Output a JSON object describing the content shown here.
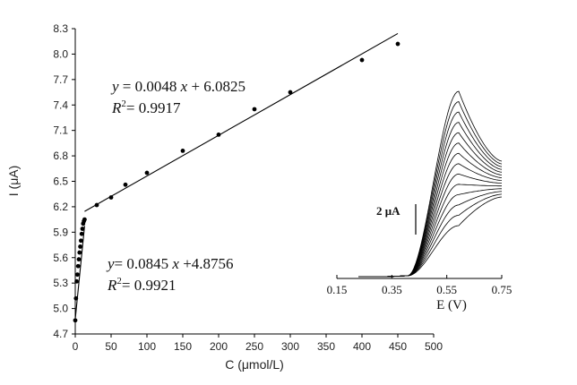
{
  "chart_data": {
    "type": "scatter",
    "xlabel": "C (μmol/L)",
    "ylabel": "I (μA)",
    "xlim": [
      0,
      500
    ],
    "ylim": [
      4.7,
      8.3
    ],
    "x_ticks": [
      "0",
      "50",
      "100",
      "150",
      "200",
      "250",
      "300",
      "350",
      "400",
      "450",
      "500"
    ],
    "y_ticks": [
      "4.7",
      "5.0",
      "5.3",
      "5.6",
      "5.9",
      "6.2",
      "6.5",
      "6.8",
      "7.1",
      "7.4",
      "7.7",
      "8.0",
      "8.3"
    ],
    "series": [
      {
        "x": [
          0,
          1,
          2,
          3,
          4,
          5,
          6,
          7,
          8,
          9,
          10,
          11,
          12,
          13
        ],
        "y": [
          4.86,
          5.12,
          5.32,
          5.4,
          5.5,
          5.58,
          5.66,
          5.73,
          5.8,
          5.88,
          5.94,
          6.0,
          6.03,
          6.05
        ]
      },
      {
        "x": [
          30,
          50,
          70,
          100,
          150,
          200,
          250,
          300,
          400,
          450
        ],
        "y": [
          6.22,
          6.31,
          6.46,
          6.6,
          6.86,
          7.05,
          7.35,
          7.55,
          7.93,
          8.12
        ]
      }
    ],
    "fits": [
      {
        "slope": 0.0845,
        "intercept": 4.8756,
        "x_range": [
          0,
          13
        ]
      },
      {
        "slope": 0.0048,
        "intercept": 6.0825,
        "x_range": [
          13,
          450
        ]
      }
    ],
    "annotations": {
      "eq1": {
        "y_text": "y",
        "rest": " = 0.0048 ",
        "x_text": "x",
        "rest2": " + 6.0825",
        "r2": "R",
        "r2_sup": "2",
        "r2_val": "= 0.9917"
      },
      "eq2": {
        "y_text": "y",
        "rest": "= 0.0845 ",
        "x_text": "x",
        "rest2": " +4.8756",
        "r2": "R",
        "r2_sup": "2",
        "r2_val": "= 0.9921"
      }
    },
    "inset": {
      "type": "line",
      "xlabel": "E (V)",
      "x_ticks": [
        "0.15",
        "0.35",
        "0.55",
        "0.75"
      ],
      "xlim": [
        0.15,
        0.75
      ],
      "scale_bar_label": "2 μA",
      "curve_count": 14
    }
  }
}
